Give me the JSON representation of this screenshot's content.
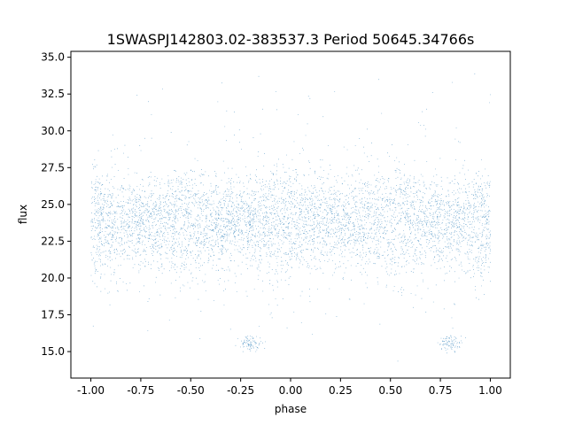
{
  "chart_data": {
    "type": "scatter",
    "title": "1SWASPJ142803.02-383537.3 Period 50645.34766s",
    "xlabel": "phase",
    "ylabel": "flux",
    "xlim": [
      -1.1,
      1.1
    ],
    "ylim": [
      13.2,
      35.4
    ],
    "xticks": [
      "-1.00",
      "-0.75",
      "-0.50",
      "-0.25",
      "0.00",
      "0.25",
      "0.50",
      "0.75",
      "1.00"
    ],
    "yticks": [
      "15.0",
      "17.5",
      "20.0",
      "22.5",
      "25.0",
      "27.5",
      "30.0",
      "32.5",
      "35.0"
    ],
    "point_color": "#1f77b4",
    "grid": false,
    "series": [
      {
        "phase_range": [
          -1.0,
          1.0
        ],
        "typical_flux_range": [
          20.5,
          27.5
        ],
        "flux_center": 24.0,
        "flux_min": 14.2,
        "flux_max": 35.0,
        "note_points": "dense cloud of ~40000 points; periodic profile repeats with phase period 1.0"
      }
    ]
  }
}
